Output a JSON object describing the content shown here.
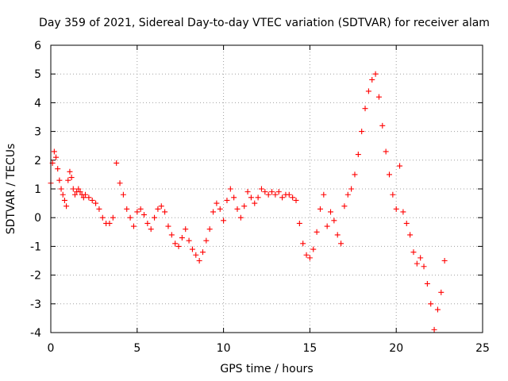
{
  "chart_data": {
    "type": "scatter",
    "title": "Day 359 of 2021, Sidereal Day-to-day VTEC variation (SDTVAR) for receiver alam",
    "xlabel": "GPS time / hours",
    "ylabel": "SDTVAR / TECUs",
    "xlim": [
      0,
      25
    ],
    "ylim": [
      -4,
      6
    ],
    "xticks": [
      0,
      5,
      10,
      15,
      20,
      25
    ],
    "yticks": [
      -4,
      -3,
      -2,
      -1,
      0,
      1,
      2,
      3,
      4,
      5,
      6
    ],
    "xtick_labels": [
      "0",
      "5",
      "10",
      "15",
      "20",
      "25"
    ],
    "ytick_labels": [
      "-4",
      "-3",
      "-2",
      "-1",
      "0",
      "1",
      "2",
      "3",
      "4",
      "5",
      "6"
    ],
    "grid": true,
    "marker": "plus",
    "color": "#ff0000",
    "series": [
      {
        "name": "SDTVAR",
        "x": [
          0.0,
          0.1,
          0.2,
          0.3,
          0.4,
          0.5,
          0.6,
          0.7,
          0.8,
          0.9,
          1.0,
          1.1,
          1.2,
          1.3,
          1.4,
          1.5,
          1.6,
          1.7,
          1.8,
          1.9,
          2.0,
          2.2,
          2.4,
          2.6,
          2.8,
          3.0,
          3.2,
          3.4,
          3.6,
          3.8,
          4.0,
          4.2,
          4.4,
          4.6,
          4.8,
          5.0,
          5.2,
          5.4,
          5.6,
          5.8,
          6.0,
          6.2,
          6.4,
          6.6,
          6.8,
          7.0,
          7.2,
          7.4,
          7.6,
          7.8,
          8.0,
          8.2,
          8.4,
          8.6,
          8.8,
          9.0,
          9.2,
          9.4,
          9.6,
          9.8,
          10.0,
          10.2,
          10.4,
          10.6,
          10.8,
          11.0,
          11.2,
          11.4,
          11.6,
          11.8,
          12.0,
          12.2,
          12.4,
          12.6,
          12.8,
          13.0,
          13.2,
          13.4,
          13.6,
          13.8,
          14.0,
          14.2,
          14.4,
          14.6,
          14.8,
          15.0,
          15.2,
          15.4,
          15.6,
          15.8,
          16.0,
          16.2,
          16.4,
          16.6,
          16.8,
          17.0,
          17.2,
          17.4,
          17.6,
          17.8,
          18.0,
          18.2,
          18.4,
          18.6,
          18.8,
          19.0,
          19.2,
          19.4,
          19.6,
          19.8,
          20.0,
          20.2,
          20.4,
          20.6,
          20.8,
          21.0,
          21.2,
          21.4,
          21.6,
          21.8,
          22.0,
          22.2,
          22.4,
          22.6,
          22.8
        ],
        "y": [
          1.2,
          1.9,
          2.3,
          2.1,
          1.7,
          1.3,
          1.0,
          0.8,
          0.6,
          0.4,
          1.3,
          1.6,
          1.4,
          1.0,
          0.8,
          0.9,
          1.0,
          0.9,
          0.8,
          0.7,
          0.8,
          0.7,
          0.6,
          0.5,
          0.3,
          0.0,
          -0.2,
          -0.2,
          0.0,
          1.9,
          1.2,
          0.8,
          0.3,
          0.0,
          -0.3,
          0.2,
          0.3,
          0.1,
          -0.2,
          -0.4,
          0.0,
          0.3,
          0.4,
          0.2,
          -0.3,
          -0.6,
          -0.9,
          -1.0,
          -0.7,
          -0.4,
          -0.8,
          -1.1,
          -1.3,
          -1.5,
          -1.2,
          -0.8,
          -0.4,
          0.2,
          0.5,
          0.3,
          -0.1,
          0.6,
          1.0,
          0.7,
          0.3,
          0.0,
          0.4,
          0.9,
          0.7,
          0.5,
          0.7,
          1.0,
          0.9,
          0.8,
          0.9,
          0.8,
          0.9,
          0.7,
          0.8,
          0.8,
          0.7,
          0.6,
          -0.2,
          -0.9,
          -1.3,
          -1.4,
          -1.1,
          -0.5,
          0.3,
          0.8,
          -0.3,
          0.2,
          -0.1,
          -0.6,
          -0.9,
          0.4,
          0.8,
          1.0,
          1.5,
          2.2,
          3.0,
          3.8,
          4.4,
          4.8,
          5.0,
          4.2,
          3.2,
          2.3,
          1.5,
          0.8,
          0.3,
          1.8,
          0.2,
          -0.2,
          -0.6,
          -1.2,
          -1.6,
          -1.4,
          -1.7,
          -2.3,
          -3.0,
          -3.9,
          -3.2,
          -2.6,
          -1.5
        ]
      }
    ]
  }
}
